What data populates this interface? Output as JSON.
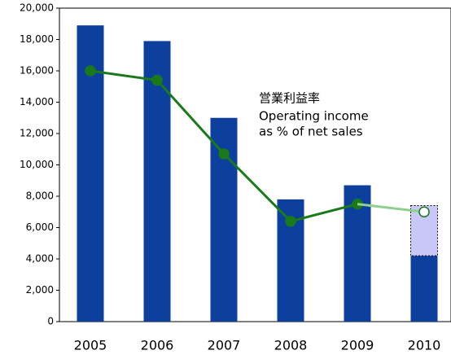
{
  "chart_data": {
    "type": "bar",
    "annotation": [
      "営業利益率",
      "Operating income",
      "as % of net sales"
    ],
    "categories": [
      "2005",
      "2006",
      "2007",
      "2008",
      "2009",
      "2010"
    ],
    "series": [
      {
        "type": "bar",
        "color": "#0d3f9e",
        "values": [
          18900,
          17900,
          13000,
          7800,
          8700,
          4200
        ]
      },
      {
        "type": "bar",
        "stacked": true,
        "dashed": true,
        "color": "#c8c8f8",
        "values": [
          null,
          null,
          null,
          null,
          null,
          3200
        ]
      },
      {
        "type": "line",
        "color": "#1a7a1a",
        "marker": "filled",
        "values": [
          16000,
          15400,
          10700,
          6400,
          7500,
          null
        ]
      },
      {
        "type": "line",
        "color": "#8fd08f",
        "marker": "hollow",
        "values": [
          null,
          null,
          null,
          null,
          7500,
          7000
        ]
      }
    ],
    "ylim": [
      0,
      20000
    ],
    "yticks": [
      0,
      {
        "value": 2000,
        "label": "2,000"
      },
      {
        "value": 4000,
        "label": "4,000"
      },
      {
        "value": 6000,
        "label": "6,000"
      },
      {
        "value": 8000,
        "label": "8,000"
      },
      {
        "value": 10000,
        "label": "10,000"
      },
      {
        "value": 12000,
        "label": "12,000"
      },
      {
        "value": 14000,
        "label": "14,000"
      },
      {
        "value": 16000,
        "label": "16,000"
      },
      {
        "value": 18000,
        "label": "18,000"
      },
      {
        "value": 20000,
        "label": "20,000"
      }
    ]
  }
}
